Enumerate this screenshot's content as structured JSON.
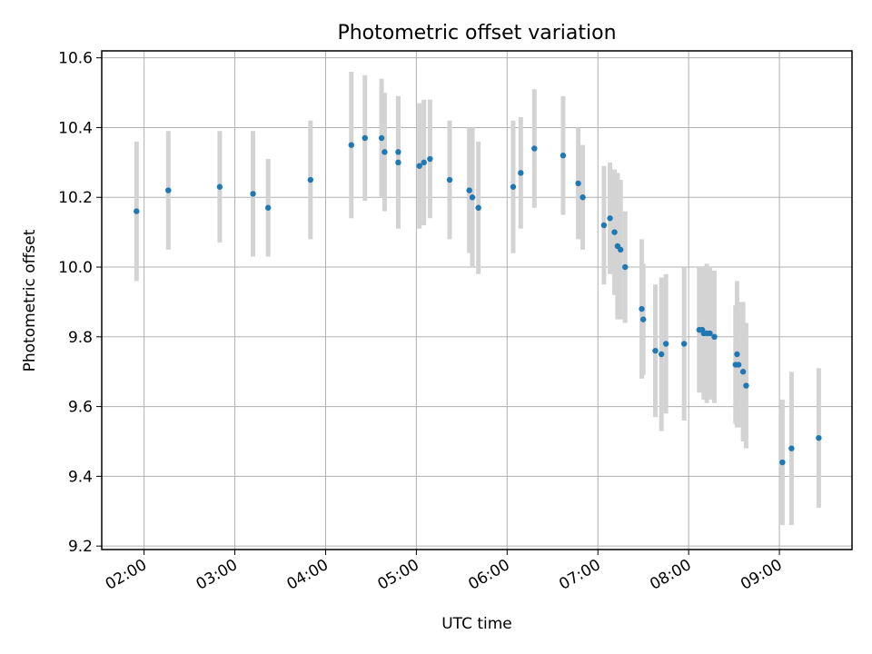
{
  "chart_data": {
    "type": "scatter",
    "title": "Photometric offset variation",
    "xlabel": "UTC time",
    "ylabel": "Photometric offset",
    "xlim": [
      "01:32",
      "09:48"
    ],
    "ylim": [
      9.19,
      10.62
    ],
    "x_ticks": [
      "02:00",
      "03:00",
      "04:00",
      "05:00",
      "06:00",
      "07:00",
      "08:00",
      "09:00"
    ],
    "y_ticks": [
      "9.2",
      "9.4",
      "9.6",
      "9.8",
      "10.0",
      "10.2",
      "10.4",
      "10.6"
    ],
    "grid": true,
    "colors": {
      "points": "#1f77b4",
      "errorbars": "#d3d3d3",
      "grid": "#b0b0b0"
    },
    "series": [
      {
        "x": [
          "01:55",
          "02:16",
          "02:50",
          "03:12",
          "03:22",
          "03:50",
          "04:17",
          "04:26",
          "04:37",
          "04:39",
          "04:48",
          "04:48",
          "05:02",
          "05:05",
          "05:09",
          "05:22",
          "05:35",
          "05:37",
          "05:41",
          "06:04",
          "06:09",
          "06:18",
          "06:37",
          "06:47",
          "06:50",
          "07:04",
          "07:08",
          "07:11",
          "07:13",
          "07:15",
          "07:18",
          "07:29",
          "07:30",
          "07:38",
          "07:42",
          "07:45",
          "07:57",
          "08:07",
          "08:09",
          "08:10",
          "08:12",
          "08:14",
          "08:17",
          "08:31",
          "08:32",
          "08:33",
          "08:36",
          "08:38",
          "09:02",
          "09:08",
          "09:26"
        ],
        "y": [
          10.16,
          10.22,
          10.23,
          10.21,
          10.17,
          10.25,
          10.35,
          10.37,
          10.37,
          10.33,
          10.33,
          10.3,
          10.29,
          10.3,
          10.31,
          10.25,
          10.22,
          10.2,
          10.17,
          10.23,
          10.27,
          10.34,
          10.32,
          10.24,
          10.2,
          10.12,
          10.14,
          10.1,
          10.06,
          10.05,
          10.0,
          9.88,
          9.85,
          9.76,
          9.75,
          9.78,
          9.78,
          9.82,
          9.82,
          9.81,
          9.81,
          9.81,
          9.8,
          9.72,
          9.75,
          9.72,
          9.7,
          9.66,
          9.44,
          9.48,
          9.51
        ],
        "yerr": [
          0.2,
          0.17,
          0.16,
          0.18,
          0.14,
          0.17,
          0.21,
          0.18,
          0.17,
          0.17,
          0.16,
          0.19,
          0.18,
          0.18,
          0.17,
          0.17,
          0.18,
          0.2,
          0.19,
          0.19,
          0.16,
          0.17,
          0.17,
          0.16,
          0.15,
          0.17,
          0.16,
          0.18,
          0.21,
          0.2,
          0.16,
          0.2,
          0.16,
          0.19,
          0.22,
          0.2,
          0.22,
          0.18,
          0.18,
          0.19,
          0.2,
          0.19,
          0.19,
          0.17,
          0.21,
          0.18,
          0.2,
          0.18,
          0.18,
          0.22,
          0.2
        ]
      }
    ]
  }
}
